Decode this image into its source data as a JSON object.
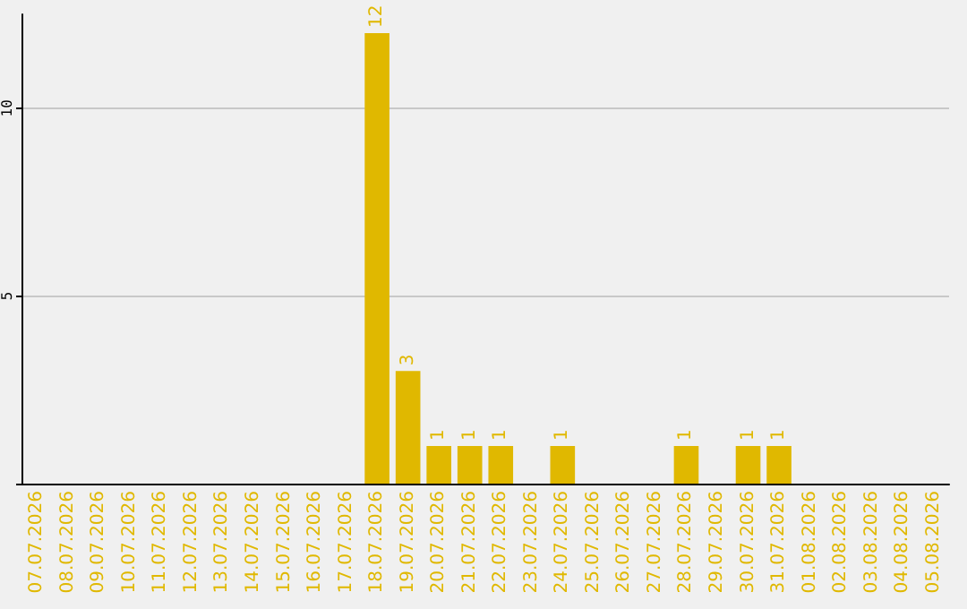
{
  "chart_data": {
    "type": "bar",
    "categories": [
      "07.07.2026",
      "08.07.2026",
      "09.07.2026",
      "10.07.2026",
      "11.07.2026",
      "12.07.2026",
      "13.07.2026",
      "14.07.2026",
      "15.07.2026",
      "16.07.2026",
      "17.07.2026",
      "18.07.2026",
      "19.07.2026",
      "20.07.2026",
      "21.07.2026",
      "22.07.2026",
      "23.07.2026",
      "24.07.2026",
      "25.07.2026",
      "26.07.2026",
      "27.07.2026",
      "28.07.2026",
      "29.07.2026",
      "30.07.2026",
      "31.07.2026",
      "01.08.2026",
      "02.08.2026",
      "03.08.2026",
      "04.08.2026",
      "05.08.2026"
    ],
    "values": [
      0,
      0,
      0,
      0,
      0,
      0,
      0,
      0,
      0,
      0,
      0,
      12,
      3,
      1,
      1,
      1,
      0,
      1,
      0,
      0,
      0,
      1,
      0,
      1,
      1,
      0,
      0,
      0,
      0,
      0
    ],
    "value_labels": [
      null,
      null,
      null,
      null,
      null,
      null,
      null,
      null,
      null,
      null,
      null,
      "12",
      "3",
      "1",
      "1",
      "1",
      null,
      "1",
      null,
      null,
      null,
      "1",
      null,
      "1",
      "1",
      null,
      null,
      null,
      null,
      null
    ],
    "color": "#e0b800",
    "ylim": [
      0,
      12.5
    ],
    "yticks": [
      {
        "value": 0,
        "label": null
      },
      5,
      10
    ],
    "grid": "y"
  }
}
